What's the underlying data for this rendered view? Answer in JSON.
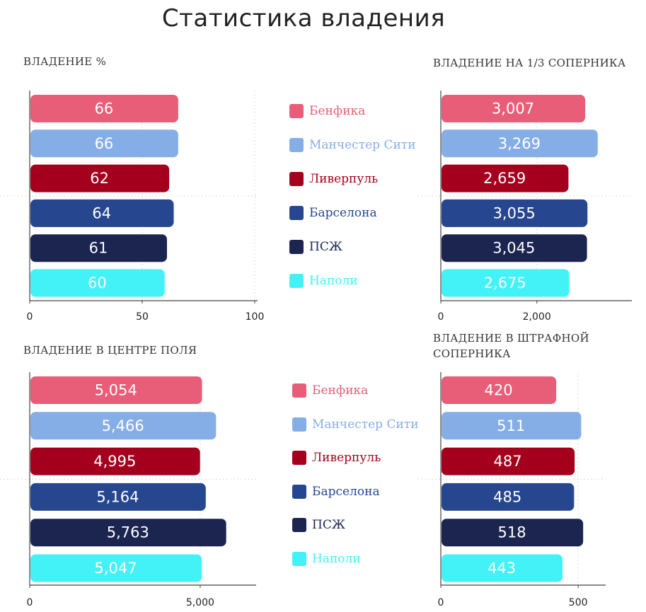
{
  "title": "Статистика владения",
  "teams": [
    {
      "name": "Бенфика",
      "color": "#E85E78"
    },
    {
      "name": "Манчестер Сити",
      "color": "#86AEE6"
    },
    {
      "name": "Ливерпуль",
      "color": "#A4001E"
    },
    {
      "name": "Барселона",
      "color": "#26468F"
    },
    {
      "name": "ПСЖ",
      "color": "#1B2550"
    },
    {
      "name": "Наполи",
      "color": "#43F2F7"
    }
  ],
  "chart_data": [
    {
      "type": "bar",
      "orientation": "horizontal",
      "title": "ВЛАДЕНИЕ %",
      "categories": [
        "Бенфика",
        "Манчестер Сити",
        "Ливерпуль",
        "Барселона",
        "ПСЖ",
        "Наполи"
      ],
      "values": [
        66,
        66,
        62,
        64,
        61,
        60
      ],
      "value_labels": [
        "66",
        "66",
        "62",
        "64",
        "61",
        "60"
      ],
      "xlim": [
        0,
        100
      ],
      "ticks": [
        0,
        50,
        100
      ],
      "tick_labels": [
        "0",
        "50",
        "100"
      ]
    },
    {
      "type": "bar",
      "orientation": "horizontal",
      "title": "ВЛАДЕНИЕ НА 1/3 СОПЕРНИКА",
      "categories": [
        "Бенфика",
        "Манчестер Сити",
        "Ливерпуль",
        "Барселона",
        "ПСЖ",
        "Наполи"
      ],
      "values": [
        3007,
        3269,
        2659,
        3055,
        3045,
        2675
      ],
      "value_labels": [
        "3,007",
        "3,269",
        "2,659",
        "3,055",
        "3,045",
        "2,675"
      ],
      "xlim": [
        0,
        3950
      ],
      "ticks": [
        0,
        2000
      ],
      "tick_labels": [
        "0",
        "2,000"
      ]
    },
    {
      "type": "bar",
      "orientation": "horizontal",
      "title": "ВЛАДЕНИЕ В ЦЕНТРЕ ПОЛЯ",
      "categories": [
        "Бенфика",
        "Манчестер Сити",
        "Ливерпуль",
        "Барселона",
        "ПСЖ",
        "Наполи"
      ],
      "values": [
        5054,
        5466,
        4995,
        5164,
        5763,
        5047
      ],
      "value_labels": [
        "5,054",
        "5,466",
        "4,995",
        "5,164",
        "5,763",
        "5,047"
      ],
      "xlim": [
        0,
        6600
      ],
      "ticks": [
        0,
        5000
      ],
      "tick_labels": [
        "0",
        "5,000"
      ]
    },
    {
      "type": "bar",
      "orientation": "horizontal",
      "title": "ВЛАДЕНИЕ В ШТРАФНОЙ СОПЕРНИКА",
      "categories": [
        "Бенфика",
        "Манчестер Сити",
        "Ливерпуль",
        "Барселона",
        "ПСЖ",
        "Наполи"
      ],
      "values": [
        420,
        511,
        487,
        485,
        518,
        443
      ],
      "value_labels": [
        "420",
        "511",
        "487",
        "485",
        "518",
        "443"
      ],
      "xlim": [
        0,
        600
      ],
      "ticks": [
        0,
        500
      ],
      "tick_labels": [
        "0",
        "500"
      ]
    }
  ]
}
